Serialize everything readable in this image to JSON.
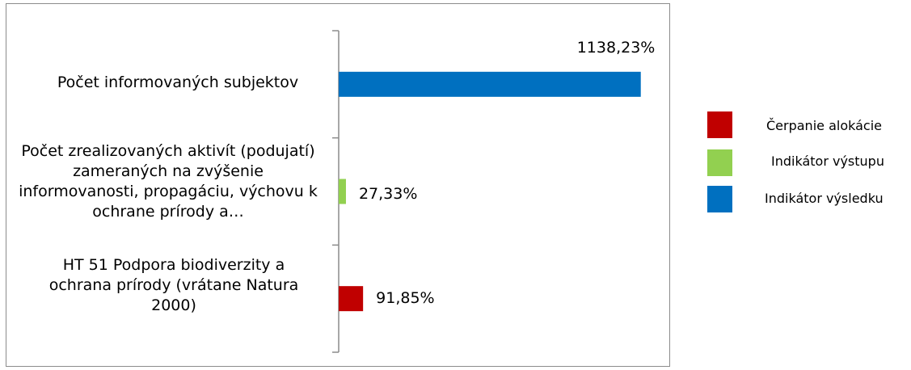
{
  "chart_data": {
    "type": "bar",
    "orientation": "horizontal",
    "categories": [
      "Počet informovaných subjektov",
      "Počet zrealizovaných aktivít (podujatí) zameraných na zvýšenie informovanosti, propagáciu, výchovu k ochrane prírody a…",
      "HT 51  Podpora biodiverzity a ochrana prírody (vrátane Natura 2000)"
    ],
    "values": [
      1138.23,
      27.33,
      91.85
    ],
    "value_labels": [
      "1138,23%",
      "27,33%",
      "91,85%"
    ],
    "bar_series": [
      "Indikátor výsledku",
      "Indikátor výstupu",
      "Čerpanie alokácie"
    ],
    "series": [
      {
        "name": "Čerpanie alokácie",
        "color": "#c00000"
      },
      {
        "name": "Indikátor výstupu",
        "color": "#92d050"
      },
      {
        "name": "Indikátor výsledku",
        "color": "#0070c0"
      }
    ],
    "xlim": [
      0,
      1200
    ],
    "grid": false,
    "legend_position": "right"
  }
}
